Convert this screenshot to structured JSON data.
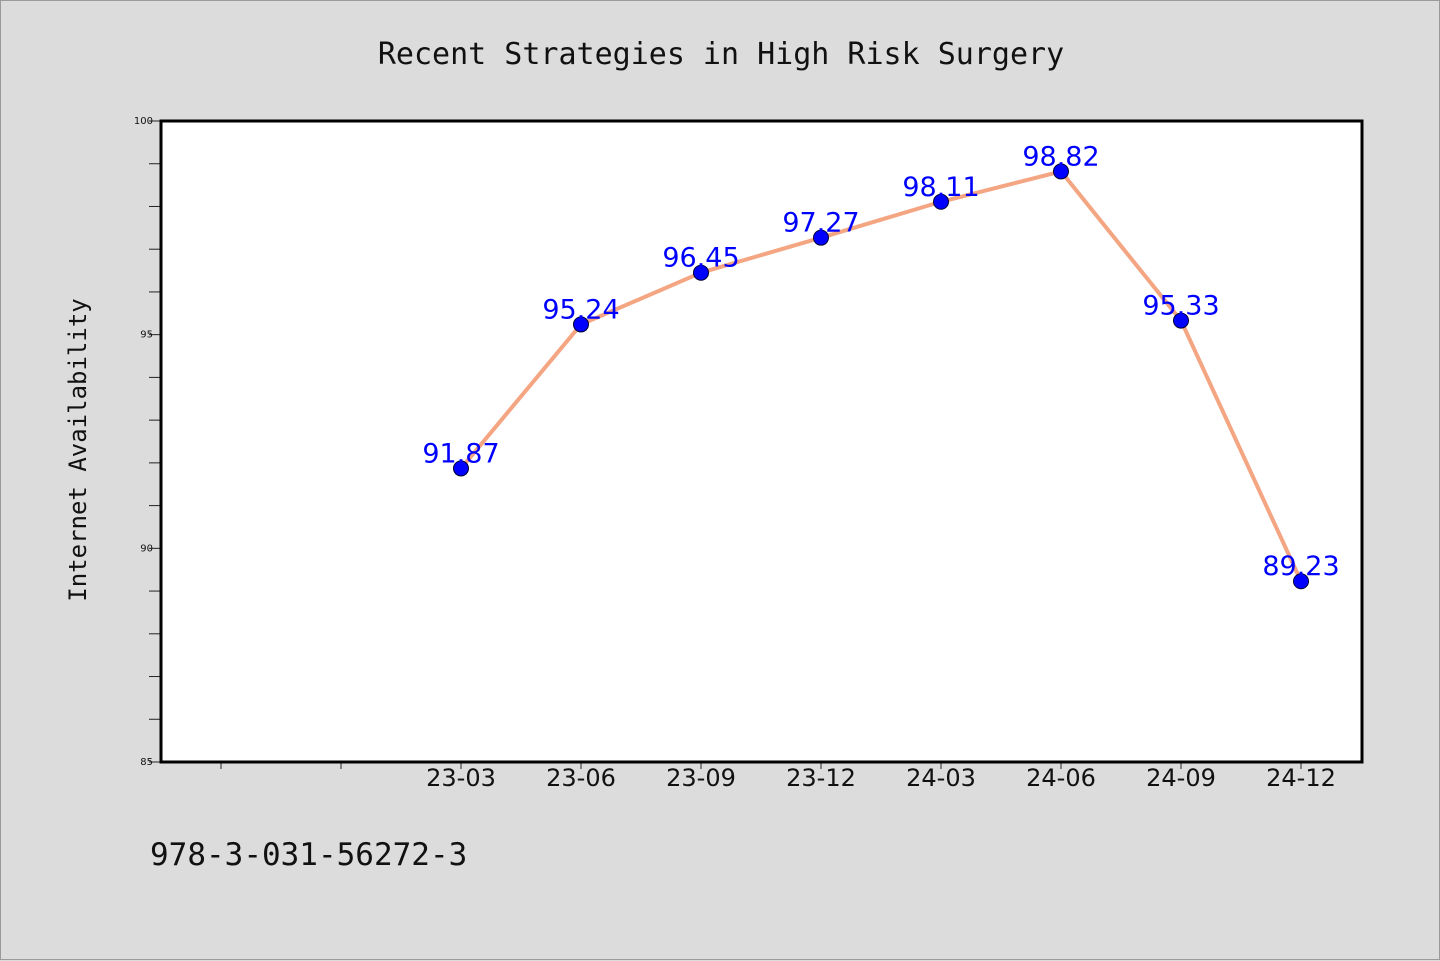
{
  "chart_data": {
    "type": "line",
    "title": "Recent Strategies in High Risk Surgery",
    "xlabel": "",
    "ylabel": "Internet Availability",
    "categories": [
      "23-03",
      "23-06",
      "23-09",
      "23-12",
      "24-03",
      "24-06",
      "24-09",
      "24-12"
    ],
    "series": [
      {
        "values": [
          91.87,
          95.24,
          96.45,
          97.27,
          98.11,
          98.82,
          95.33,
          89.23
        ]
      }
    ],
    "data_labels": [
      "91.87",
      "95.24",
      "96.45",
      "97.27",
      "98.11",
      "98.82",
      "95.33",
      "89.23"
    ],
    "ylim": [
      85,
      100
    ],
    "yticks": [
      85,
      90,
      95,
      100
    ],
    "ytick_labels": [
      "85",
      "90",
      "95",
      "100"
    ],
    "y_minor_step": 1,
    "grid": false,
    "colors": {
      "line": "#f4a582",
      "marker": "#0000ff",
      "label": "#0000ff",
      "background": "#dcdcdc",
      "plot_area": "#ffffff"
    }
  },
  "footer": {
    "isbn": "978-3-031-56272-3"
  }
}
